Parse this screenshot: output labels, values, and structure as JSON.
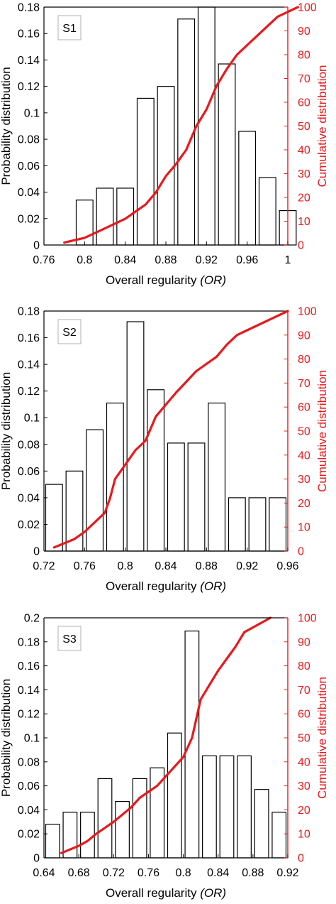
{
  "chart_data": [
    {
      "type": "bar",
      "panel_label": "S1",
      "xlabel": "Overall regularity",
      "xlabel_italic": "(OR)",
      "ylabel": "Probability distribution",
      "y2label": "Cumulative distribution",
      "xlim": [
        0.76,
        1.0
      ],
      "xticks": [
        "0.76",
        "0.8",
        "0.84",
        "0.88",
        "0.92",
        "0.96",
        "1"
      ],
      "ylim": [
        0,
        0.18
      ],
      "yticks": [
        "0",
        "0.02",
        "0.04",
        "0.06",
        "0.08",
        "0.1",
        "0.12",
        "0.14",
        "0.16",
        "0.18"
      ],
      "y2lim": [
        0,
        100
      ],
      "y2ticks": [
        "0",
        "10",
        "20",
        "30",
        "40",
        "50",
        "60",
        "70",
        "80",
        "90",
        "100"
      ],
      "bin_width": 0.02,
      "bars": [
        {
          "x": 0.8,
          "value": 0.034
        },
        {
          "x": 0.82,
          "value": 0.043
        },
        {
          "x": 0.84,
          "value": 0.043
        },
        {
          "x": 0.86,
          "value": 0.111
        },
        {
          "x": 0.88,
          "value": 0.12
        },
        {
          "x": 0.9,
          "value": 0.171
        },
        {
          "x": 0.92,
          "value": 0.18
        },
        {
          "x": 0.94,
          "value": 0.137
        },
        {
          "x": 0.96,
          "value": 0.086
        },
        {
          "x": 0.98,
          "value": 0.051
        },
        {
          "x": 1.0,
          "value": 0.026
        }
      ],
      "cumulative": [
        [
          0.78,
          1
        ],
        [
          0.8,
          3
        ],
        [
          0.82,
          7
        ],
        [
          0.84,
          11
        ],
        [
          0.85,
          14
        ],
        [
          0.86,
          17
        ],
        [
          0.87,
          22
        ],
        [
          0.88,
          29
        ],
        [
          0.89,
          34
        ],
        [
          0.9,
          40
        ],
        [
          0.91,
          50
        ],
        [
          0.92,
          57
        ],
        [
          0.93,
          67
        ],
        [
          0.94,
          74
        ],
        [
          0.95,
          80
        ],
        [
          0.97,
          88
        ],
        [
          0.99,
          96
        ],
        [
          1.01,
          100
        ]
      ],
      "colors": {
        "bars": "#000000",
        "cumulative": "#e8191c"
      }
    },
    {
      "type": "bar",
      "panel_label": "S2",
      "xlabel": "Overall regularity",
      "xlabel_italic": "(OR)",
      "ylabel": "Probability distribution",
      "y2label": "Cumulative distribution",
      "xlim": [
        0.72,
        0.96
      ],
      "xticks": [
        "0.72",
        "0.76",
        "0.8",
        "0.84",
        "0.88",
        "0.92",
        "0.96"
      ],
      "ylim": [
        0,
        0.18
      ],
      "yticks": [
        "0",
        "0.02",
        "0.04",
        "0.06",
        "0.08",
        "0.1",
        "0.12",
        "0.14",
        "0.16",
        "0.18"
      ],
      "y2lim": [
        0,
        100
      ],
      "y2ticks": [
        "0",
        "10",
        "20",
        "30",
        "40",
        "50",
        "60",
        "70",
        "80",
        "90",
        "100"
      ],
      "bin_width": 0.02,
      "bars": [
        {
          "x": 0.73,
          "value": 0.05
        },
        {
          "x": 0.75,
          "value": 0.06
        },
        {
          "x": 0.77,
          "value": 0.091
        },
        {
          "x": 0.79,
          "value": 0.111
        },
        {
          "x": 0.81,
          "value": 0.172
        },
        {
          "x": 0.83,
          "value": 0.121
        },
        {
          "x": 0.85,
          "value": 0.081
        },
        {
          "x": 0.87,
          "value": 0.081
        },
        {
          "x": 0.89,
          "value": 0.111
        },
        {
          "x": 0.91,
          "value": 0.04
        },
        {
          "x": 0.93,
          "value": 0.04
        },
        {
          "x": 0.95,
          "value": 0.04
        }
      ],
      "cumulative": [
        [
          0.73,
          1.5
        ],
        [
          0.75,
          5
        ],
        [
          0.76,
          8
        ],
        [
          0.77,
          12
        ],
        [
          0.78,
          16
        ],
        [
          0.785,
          22
        ],
        [
          0.79,
          30
        ],
        [
          0.8,
          36
        ],
        [
          0.81,
          42
        ],
        [
          0.82,
          46
        ],
        [
          0.83,
          56
        ],
        [
          0.85,
          66
        ],
        [
          0.87,
          75
        ],
        [
          0.89,
          81
        ],
        [
          0.9,
          86
        ],
        [
          0.91,
          90
        ],
        [
          0.92,
          92
        ],
        [
          0.94,
          96
        ],
        [
          0.96,
          100
        ]
      ],
      "colors": {
        "bars": "#000000",
        "cumulative": "#e8191c"
      }
    },
    {
      "type": "bar",
      "panel_label": "S3",
      "xlabel": "Overall regularity",
      "xlabel_italic": "(OR)",
      "ylabel": "Probability distribution",
      "y2label": "Cumulative distribution",
      "xlim": [
        0.64,
        0.92
      ],
      "xticks": [
        "0.64",
        "0.68",
        "0.72",
        "0.76",
        "0.8",
        "0.84",
        "0.88",
        "0.92"
      ],
      "ylim": [
        0,
        0.2
      ],
      "yticks": [
        "0",
        "0.02",
        "0.04",
        "0.06",
        "0.08",
        "0.1",
        "0.12",
        "0.14",
        "0.16",
        "0.18",
        "0.2"
      ],
      "y2lim": [
        0,
        100
      ],
      "y2ticks": [
        "0",
        "10",
        "20",
        "30",
        "40",
        "50",
        "60",
        "70",
        "80",
        "90",
        "100"
      ],
      "bin_width": 0.02,
      "bars": [
        {
          "x": 0.65,
          "value": 0.028
        },
        {
          "x": 0.67,
          "value": 0.038
        },
        {
          "x": 0.69,
          "value": 0.038
        },
        {
          "x": 0.71,
          "value": 0.066
        },
        {
          "x": 0.73,
          "value": 0.047
        },
        {
          "x": 0.75,
          "value": 0.066
        },
        {
          "x": 0.77,
          "value": 0.075
        },
        {
          "x": 0.79,
          "value": 0.104
        },
        {
          "x": 0.81,
          "value": 0.189
        },
        {
          "x": 0.83,
          "value": 0.085
        },
        {
          "x": 0.85,
          "value": 0.085
        },
        {
          "x": 0.87,
          "value": 0.085
        },
        {
          "x": 0.89,
          "value": 0.057
        },
        {
          "x": 0.91,
          "value": 0.038
        }
      ],
      "cumulative": [
        [
          0.66,
          2
        ],
        [
          0.68,
          5
        ],
        [
          0.69,
          7
        ],
        [
          0.7,
          10
        ],
        [
          0.72,
          15
        ],
        [
          0.74,
          21
        ],
        [
          0.75,
          25
        ],
        [
          0.77,
          30
        ],
        [
          0.79,
          38
        ],
        [
          0.8,
          42
        ],
        [
          0.81,
          50
        ],
        [
          0.82,
          66
        ],
        [
          0.83,
          72
        ],
        [
          0.84,
          78
        ],
        [
          0.85,
          83
        ],
        [
          0.86,
          88
        ],
        [
          0.87,
          94
        ],
        [
          0.88,
          96
        ],
        [
          0.9,
          100
        ]
      ],
      "colors": {
        "bars": "#000000",
        "cumulative": "#e8191c"
      }
    }
  ]
}
